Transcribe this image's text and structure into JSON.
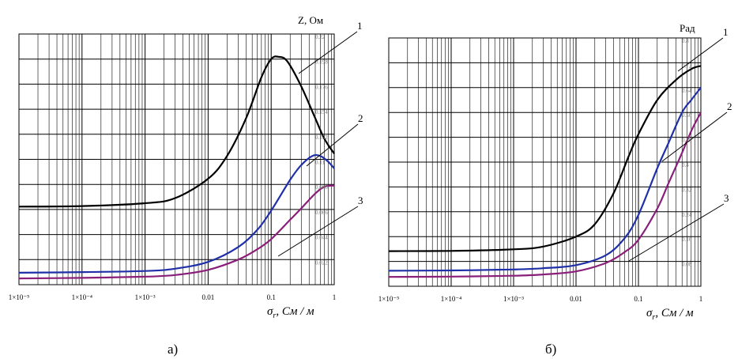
{
  "chart_data": [
    {
      "type": "line",
      "x_scale": "log",
      "xlim": [
        1e-05,
        1
      ],
      "ylim": [
        0,
        0.22
      ],
      "xlabel": "σ_r, См / м",
      "ylabel": "Z, Ом",
      "x_tick_labels": [
        "1×10⁻⁵",
        "1×10⁻⁴",
        "1×10⁻³",
        "0.01",
        "0.1",
        "1"
      ],
      "y_tick_labels": [
        "0.22",
        "0.198",
        "0.176",
        "0.154",
        "0.132",
        "0.11",
        "0.088",
        "0.066",
        "0.044",
        "0.022"
      ],
      "grid": true,
      "caption": "а)",
      "series": [
        {
          "name": "1",
          "color": "#000000",
          "x": [
            1e-05,
            0.0001,
            0.001,
            0.003,
            0.01,
            0.02,
            0.04,
            0.07,
            0.1,
            0.13,
            0.18,
            0.3,
            0.5,
            0.7,
            1
          ],
          "y": [
            0.0685,
            0.069,
            0.0715,
            0.076,
            0.093,
            0.113,
            0.146,
            0.182,
            0.198,
            0.2,
            0.196,
            0.174,
            0.146,
            0.128,
            0.115
          ]
        },
        {
          "name": "2",
          "color": "#1f2fa8",
          "x": [
            1e-05,
            0.0001,
            0.001,
            0.003,
            0.01,
            0.03,
            0.06,
            0.1,
            0.2,
            0.3,
            0.45,
            0.6,
            0.8,
            1
          ],
          "y": [
            0.0105,
            0.011,
            0.012,
            0.014,
            0.02,
            0.033,
            0.048,
            0.065,
            0.092,
            0.105,
            0.113,
            0.113,
            0.108,
            0.102
          ]
        },
        {
          "name": "3",
          "color": "#8a1f7a",
          "x": [
            1e-05,
            0.0001,
            0.001,
            0.003,
            0.01,
            0.03,
            0.06,
            0.1,
            0.2,
            0.3,
            0.5,
            0.7,
            1
          ],
          "y": [
            0.0055,
            0.006,
            0.007,
            0.0085,
            0.013,
            0.022,
            0.031,
            0.04,
            0.057,
            0.067,
            0.08,
            0.086,
            0.087
          ]
        }
      ]
    },
    {
      "type": "line",
      "x_scale": "log",
      "xlim": [
        1e-05,
        1
      ],
      "ylim": [
        0,
        0.8
      ],
      "xlabel": "σ_r, См / м",
      "ylabel": "Рад",
      "x_tick_labels": [
        "1×10⁻⁵",
        "1×10⁻⁴",
        "1×10⁻³",
        "0.01",
        "0.1",
        "1"
      ],
      "y_tick_labels": [
        "0.8",
        "0.72",
        "0.64",
        "0.56",
        "0.48",
        "0.4",
        "0.32",
        "0.24",
        "0.16",
        "0.08"
      ],
      "grid": true,
      "caption": "б)",
      "series": [
        {
          "name": "1",
          "color": "#000000",
          "x": [
            1e-05,
            0.0001,
            0.001,
            0.003,
            0.01,
            0.02,
            0.04,
            0.07,
            0.1,
            0.2,
            0.4,
            0.7,
            1
          ],
          "y": [
            0.113,
            0.114,
            0.119,
            0.128,
            0.16,
            0.2,
            0.3,
            0.42,
            0.49,
            0.6,
            0.665,
            0.7,
            0.71
          ]
        },
        {
          "name": "2",
          "color": "#1f2fa8",
          "x": [
            1e-05,
            0.0001,
            0.001,
            0.003,
            0.01,
            0.03,
            0.06,
            0.1,
            0.2,
            0.3,
            0.5,
            0.7,
            1
          ],
          "y": [
            0.05,
            0.051,
            0.054,
            0.058,
            0.068,
            0.1,
            0.155,
            0.23,
            0.38,
            0.46,
            0.56,
            0.6,
            0.64
          ]
        },
        {
          "name": "3",
          "color": "#8a1f7a",
          "x": [
            1e-05,
            0.0001,
            0.001,
            0.003,
            0.01,
            0.03,
            0.06,
            0.1,
            0.2,
            0.3,
            0.5,
            0.7,
            1
          ],
          "y": [
            0.03,
            0.031,
            0.034,
            0.038,
            0.048,
            0.075,
            0.11,
            0.15,
            0.25,
            0.33,
            0.43,
            0.5,
            0.56
          ]
        }
      ]
    }
  ],
  "labels": {
    "a_ylabel": "Z, Ом",
    "b_ylabel": "Рад",
    "xlabel_sigma": "σ",
    "xlabel_sub": "r",
    "xlabel_units": ", См / м",
    "caption_a": "а)",
    "caption_b": "б)",
    "curve_numbers": [
      "1",
      "2",
      "3"
    ]
  }
}
